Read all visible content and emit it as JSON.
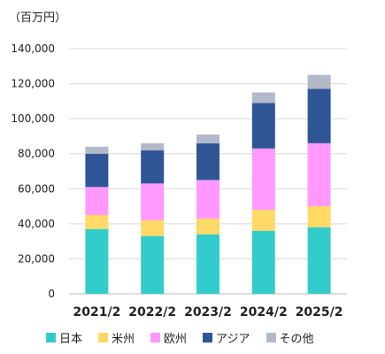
{
  "chart_data": {
    "type": "bar",
    "stacked": true,
    "unit_label": "（百万円）",
    "categories": [
      "2021/2",
      "2022/2",
      "2023/2",
      "2024/2",
      "2025/2"
    ],
    "series": [
      {
        "name": "日本",
        "color": "#33CCCC",
        "values": [
          37000,
          33000,
          34000,
          36000,
          38000
        ]
      },
      {
        "name": "米州",
        "color": "#FFD966",
        "values": [
          8000,
          9000,
          9000,
          12000,
          12000
        ]
      },
      {
        "name": "欧州",
        "color": "#FF99FF",
        "values": [
          16000,
          21000,
          22000,
          35000,
          36000
        ]
      },
      {
        "name": "アジア",
        "color": "#2F5597",
        "values": [
          19000,
          19000,
          21000,
          26000,
          31000
        ]
      },
      {
        "name": "その他",
        "color": "#B4B9C8",
        "values": [
          4000,
          4000,
          5000,
          6000,
          8000
        ]
      }
    ],
    "yticks": [
      "0",
      "20,000",
      "40,000",
      "60,000",
      "80,000",
      "100,000",
      "120,000",
      "140,000"
    ],
    "ylim": [
      0,
      140000
    ],
    "grid": true,
    "legend_position": "bottom"
  }
}
